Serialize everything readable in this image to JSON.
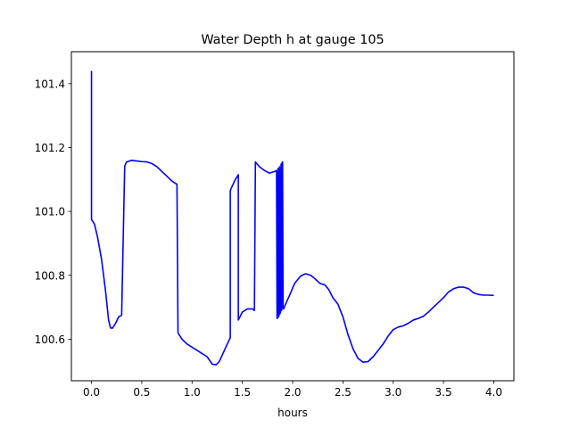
{
  "chart_data": {
    "type": "line",
    "title": "Water Depth h at gauge 105",
    "xlabel": "hours",
    "ylabel": "",
    "xlim": [
      -0.2,
      4.2
    ],
    "ylim": [
      100.47,
      101.5
    ],
    "xticks": [
      0.0,
      0.5,
      1.0,
      1.5,
      2.0,
      2.5,
      3.0,
      3.5,
      4.0
    ],
    "xtick_labels": [
      "0.0",
      "0.5",
      "1.0",
      "1.5",
      "2.0",
      "2.5",
      "3.0",
      "3.5",
      "4.0"
    ],
    "yticks": [
      100.6,
      100.8,
      101.0,
      101.2,
      101.4
    ],
    "ytick_labels": [
      "100.6",
      "100.8",
      "101.0",
      "101.2",
      "101.4"
    ],
    "grid": false,
    "legend": "none",
    "series": [
      {
        "color": "#0000ff",
        "x": [
          0.0,
          0.0,
          0.0,
          0.03,
          0.06,
          0.1,
          0.14,
          0.17,
          0.19,
          0.21,
          0.24,
          0.27,
          0.3,
          0.33,
          0.34,
          0.35,
          0.4,
          0.45,
          0.5,
          0.55,
          0.6,
          0.65,
          0.7,
          0.75,
          0.8,
          0.85,
          0.86,
          0.87,
          0.9,
          0.95,
          1.0,
          1.05,
          1.1,
          1.15,
          1.2,
          1.24,
          1.27,
          1.3,
          1.35,
          1.38,
          1.38,
          1.4,
          1.43,
          1.46,
          1.46,
          1.5,
          1.55,
          1.6,
          1.62,
          1.63,
          1.67,
          1.72,
          1.77,
          1.82,
          1.84,
          1.845,
          1.85,
          1.855,
          1.86,
          1.865,
          1.87,
          1.875,
          1.88,
          1.885,
          1.89,
          1.895,
          1.9,
          1.905,
          1.91,
          1.93,
          1.98,
          2.02,
          2.08,
          2.13,
          2.18,
          2.22,
          2.27,
          2.32,
          2.36,
          2.4,
          2.45,
          2.5,
          2.55,
          2.6,
          2.65,
          2.7,
          2.75,
          2.8,
          2.85,
          2.9,
          2.95,
          3.0,
          3.05,
          3.1,
          3.15,
          3.2,
          3.25,
          3.3,
          3.35,
          3.4,
          3.45,
          3.5,
          3.55,
          3.6,
          3.65,
          3.7,
          3.75,
          3.8,
          3.85,
          3.9,
          3.95,
          4.0
        ],
        "y": [
          101.44,
          100.98,
          100.975,
          100.96,
          100.92,
          100.85,
          100.75,
          100.66,
          100.635,
          100.635,
          100.65,
          100.67,
          100.675,
          101.14,
          101.15,
          101.155,
          101.16,
          101.158,
          101.156,
          101.155,
          101.15,
          101.14,
          101.125,
          101.11,
          101.095,
          101.085,
          100.62,
          100.615,
          100.6,
          100.585,
          100.575,
          100.565,
          100.555,
          100.545,
          100.522,
          100.52,
          100.53,
          100.55,
          100.585,
          100.605,
          101.065,
          101.08,
          101.1,
          101.115,
          100.66,
          100.685,
          100.695,
          100.695,
          100.69,
          101.155,
          101.14,
          101.128,
          101.12,
          101.125,
          101.128,
          100.665,
          100.668,
          101.135,
          100.67,
          100.675,
          101.14,
          100.68,
          100.685,
          101.148,
          100.69,
          101.152,
          101.155,
          100.695,
          100.695,
          100.71,
          100.745,
          100.775,
          100.798,
          100.805,
          100.8,
          100.79,
          100.775,
          100.77,
          100.755,
          100.73,
          100.71,
          100.67,
          100.615,
          100.57,
          100.54,
          100.528,
          100.53,
          100.545,
          100.565,
          100.585,
          100.61,
          100.63,
          100.638,
          100.642,
          100.65,
          100.66,
          100.665,
          100.672,
          100.685,
          100.7,
          100.715,
          100.73,
          100.748,
          100.758,
          100.763,
          100.763,
          100.758,
          100.745,
          100.74,
          100.738,
          100.738,
          100.737
        ]
      }
    ]
  }
}
